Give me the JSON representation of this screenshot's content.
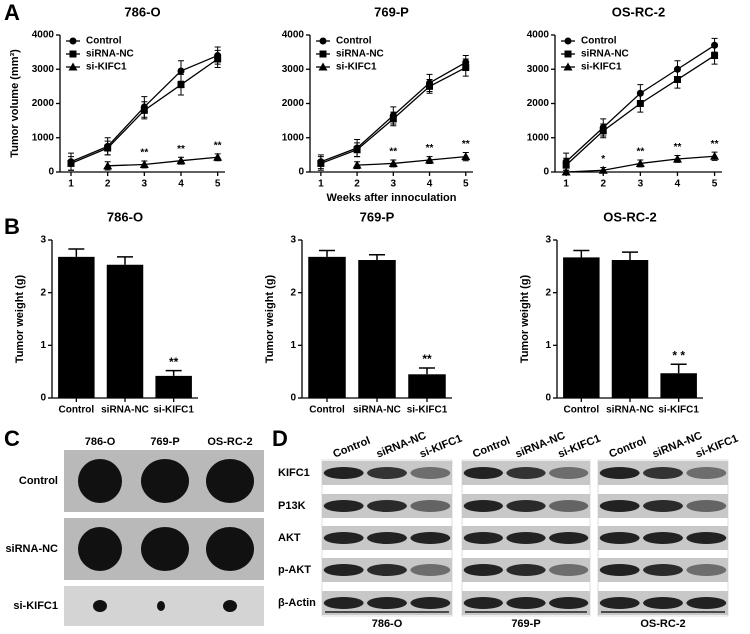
{
  "panel_labels": [
    "A",
    "B",
    "C",
    "D"
  ],
  "chart_data": [
    {
      "type": "line",
      "title": "786-O",
      "ylabel": "Tumor volume (mm³)",
      "x": [
        1,
        2,
        3,
        4,
        5
      ],
      "xlim": [
        0.7,
        5.2
      ],
      "xticks": [
        1,
        2,
        3,
        4,
        5
      ],
      "ylim": [
        0,
        4000
      ],
      "yticks": [
        0,
        1000,
        2000,
        3000,
        4000
      ],
      "legend": "upper left",
      "series": [
        {
          "name": "Control",
          "color": "#000000",
          "marker": "circle",
          "values": [
            300,
            750,
            1900,
            2950,
            3400
          ],
          "errors": [
            250,
            250,
            300,
            300,
            250
          ]
        },
        {
          "name": "siRNA-NC",
          "color": "#000000",
          "marker": "square",
          "values": [
            250,
            700,
            1800,
            2550,
            3300
          ],
          "errors": [
            200,
            200,
            250,
            300,
            250
          ]
        },
        {
          "name": "si-KIFC1",
          "color": "#000000",
          "marker": "triangle",
          "values": [
            null,
            180,
            220,
            330,
            430
          ],
          "errors": [
            null,
            120,
            100,
            100,
            100
          ],
          "annotations": [
            null,
            null,
            "**",
            "**",
            "**"
          ]
        }
      ]
    },
    {
      "type": "line",
      "title": "769-P",
      "xlabel": "Weeks after innoculation",
      "x": [
        1,
        2,
        3,
        4,
        5
      ],
      "xlim": [
        0.7,
        5.2
      ],
      "xticks": [
        1,
        2,
        3,
        4,
        5
      ],
      "ylim": [
        0,
        4000
      ],
      "yticks": [
        0,
        1000,
        2000,
        3000,
        4000
      ],
      "legend": "upper left",
      "series": [
        {
          "name": "Control",
          "color": "#000000",
          "marker": "circle",
          "values": [
            300,
            700,
            1650,
            2600,
            3200
          ],
          "errors": [
            200,
            250,
            250,
            250,
            200
          ]
        },
        {
          "name": "siRNA-NC",
          "color": "#000000",
          "marker": "square",
          "values": [
            250,
            650,
            1550,
            2500,
            3050
          ],
          "errors": [
            200,
            200,
            200,
            200,
            250
          ]
        },
        {
          "name": "si-KIFC1",
          "color": "#000000",
          "marker": "triangle",
          "values": [
            null,
            200,
            250,
            350,
            450
          ],
          "errors": [
            null,
            100,
            100,
            100,
            120
          ],
          "annotations": [
            null,
            null,
            "**",
            "**",
            "**"
          ]
        }
      ]
    },
    {
      "type": "line",
      "title": "OS-RC-2",
      "x": [
        1,
        2,
        3,
        4,
        5
      ],
      "xlim": [
        0.7,
        5.2
      ],
      "xticks": [
        1,
        2,
        3,
        4,
        5
      ],
      "ylim": [
        0,
        4000
      ],
      "yticks": [
        0,
        1000,
        2000,
        3000,
        4000
      ],
      "legend": "upper left",
      "series": [
        {
          "name": "Control",
          "color": "#000000",
          "marker": "circle",
          "values": [
            300,
            1300,
            2300,
            3000,
            3700
          ],
          "errors": [
            250,
            250,
            250,
            250,
            200
          ]
        },
        {
          "name": "siRNA-NC",
          "color": "#000000",
          "marker": "square",
          "values": [
            200,
            1200,
            2000,
            2700,
            3400
          ],
          "errors": [
            200,
            200,
            250,
            250,
            250
          ]
        },
        {
          "name": "si-KIFC1",
          "color": "#000000",
          "marker": "triangle",
          "values": [
            0,
            50,
            250,
            380,
            460
          ],
          "errors": [
            50,
            80,
            100,
            100,
            120
          ],
          "annotations": [
            null,
            "*",
            "**",
            "**",
            "**"
          ]
        }
      ]
    },
    {
      "type": "bar",
      "title": "786-O",
      "ylabel": "Tumor weight (g)",
      "categories": [
        "Control",
        "siRNA-NC",
        "si-KIFC1"
      ],
      "values": [
        2.68,
        2.53,
        0.42
      ],
      "errors": [
        0.15,
        0.15,
        0.1
      ],
      "annotations": [
        null,
        null,
        "**"
      ],
      "color": "#000000",
      "ylim": [
        0,
        3
      ],
      "yticks": [
        0,
        1,
        2,
        3
      ]
    },
    {
      "type": "bar",
      "title": "769-P",
      "ylabel": "Tumor weight (g)",
      "categories": [
        "Control",
        "siRNA-NC",
        "si-KIFC1"
      ],
      "values": [
        2.68,
        2.62,
        0.45
      ],
      "errors": [
        0.12,
        0.1,
        0.12
      ],
      "annotations": [
        null,
        null,
        "**"
      ],
      "color": "#000000",
      "ylim": [
        0,
        3
      ],
      "yticks": [
        0,
        1,
        2,
        3
      ]
    },
    {
      "type": "bar",
      "title": "OS-RC-2",
      "ylabel": "Tumor weight (g)",
      "categories": [
        "Control",
        "siRNA-NC",
        "si-KIFC1"
      ],
      "values": [
        2.67,
        2.62,
        0.47
      ],
      "errors": [
        0.13,
        0.15,
        0.17
      ],
      "annotations": [
        null,
        null,
        "* *"
      ],
      "color": "#000000",
      "ylim": [
        0,
        3
      ],
      "yticks": [
        0,
        1,
        2,
        3
      ]
    }
  ],
  "photo": {
    "columns": [
      "786-O",
      "769-P",
      "OS-RC-2"
    ],
    "rows": [
      "Control",
      "siRNA-NC",
      "si-KIFC1"
    ]
  },
  "blot": {
    "lanes": [
      "Control",
      "siRNA-NC",
      "si-KIFC1"
    ],
    "proteins": [
      "KIFC1",
      "P13K",
      "AKT",
      "p-AKT",
      "β-Actin"
    ],
    "groups": [
      "786-O",
      "769-P",
      "OS-RC-2"
    ]
  }
}
